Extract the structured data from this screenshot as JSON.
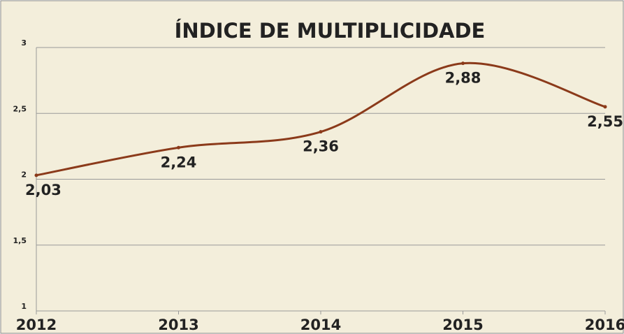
{
  "chart_data": {
    "type": "line",
    "title": "ÍNDICE DE MULTIPLICIDADE",
    "categories": [
      "2012",
      "2013",
      "2014",
      "2015",
      "2016"
    ],
    "series": [
      {
        "name": "Índice de multiplicidade",
        "color": "#8b3a1a",
        "values": [
          2.03,
          2.24,
          2.36,
          2.88,
          2.55
        ],
        "value_labels": [
          "2,03",
          "2,24",
          "2,36",
          "2,88",
          "2,55"
        ]
      }
    ],
    "ylim": [
      1,
      3
    ],
    "yticks": [
      1,
      {
        "value": 1.5,
        "label": "1,5"
      },
      2,
      {
        "value": 2.5,
        "label": "2,5"
      },
      3
    ],
    "grid": true,
    "smooth": true
  }
}
